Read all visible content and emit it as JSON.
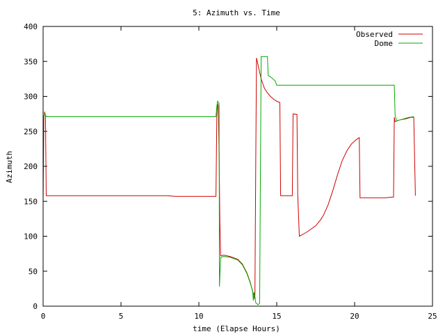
{
  "chart_data": {
    "type": "line",
    "title": "5: Azimuth vs. Time",
    "xlabel": "time (Elapse Hours)",
    "ylabel": "Azimuth",
    "xlim": [
      0,
      25
    ],
    "ylim": [
      0,
      400
    ],
    "xticks": [
      0,
      5,
      10,
      15,
      20,
      25
    ],
    "yticks": [
      0,
      50,
      100,
      150,
      200,
      250,
      300,
      350,
      400
    ],
    "grid": false,
    "legend_position": "top-right",
    "series": [
      {
        "name": "Observed",
        "color": "#cc0000",
        "points": [
          [
            0.0,
            150
          ],
          [
            0.05,
            270
          ],
          [
            0.1,
            278
          ],
          [
            0.15,
            272
          ],
          [
            0.2,
            158
          ],
          [
            0.25,
            158
          ],
          [
            5.0,
            158
          ],
          [
            8.0,
            158
          ],
          [
            8.5,
            157
          ],
          [
            11.0,
            157
          ],
          [
            11.1,
            157
          ],
          [
            11.15,
            270
          ],
          [
            11.2,
            290
          ],
          [
            11.25,
            285
          ],
          [
            11.3,
            220
          ],
          [
            11.35,
            120
          ],
          [
            11.4,
            72
          ],
          [
            11.6,
            73
          ],
          [
            12.0,
            71
          ],
          [
            12.5,
            67
          ],
          [
            12.8,
            60
          ],
          [
            13.1,
            47
          ],
          [
            13.3,
            34
          ],
          [
            13.5,
            17
          ],
          [
            13.6,
            10
          ],
          [
            13.65,
            200
          ],
          [
            13.7,
            355
          ],
          [
            13.8,
            345
          ],
          [
            14.0,
            325
          ],
          [
            14.2,
            312
          ],
          [
            14.4,
            305
          ],
          [
            14.6,
            300
          ],
          [
            14.8,
            296
          ],
          [
            15.0,
            293
          ],
          [
            15.2,
            291
          ],
          [
            15.25,
            158
          ],
          [
            15.5,
            158
          ],
          [
            16.0,
            158
          ],
          [
            16.05,
            275
          ],
          [
            16.3,
            274
          ],
          [
            16.35,
            160
          ],
          [
            16.45,
            100
          ],
          [
            16.7,
            103
          ],
          [
            17.0,
            107
          ],
          [
            17.5,
            115
          ],
          [
            17.8,
            123
          ],
          [
            18.0,
            130
          ],
          [
            18.3,
            145
          ],
          [
            18.6,
            165
          ],
          [
            18.9,
            188
          ],
          [
            19.2,
            208
          ],
          [
            19.5,
            222
          ],
          [
            19.8,
            232
          ],
          [
            20.1,
            238
          ],
          [
            20.3,
            241
          ],
          [
            20.35,
            155
          ],
          [
            20.6,
            155
          ],
          [
            21.5,
            155
          ],
          [
            22.0,
            155
          ],
          [
            22.4,
            156
          ],
          [
            22.5,
            156
          ],
          [
            22.55,
            270
          ],
          [
            22.6,
            264
          ],
          [
            23.0,
            267
          ],
          [
            23.3,
            268
          ],
          [
            23.6,
            270
          ],
          [
            23.8,
            270
          ],
          [
            23.9,
            158
          ]
        ]
      },
      {
        "name": "Dome",
        "color": "#00aa00",
        "points": [
          [
            0.0,
            268
          ],
          [
            0.1,
            276
          ],
          [
            0.2,
            271
          ],
          [
            1.0,
            271
          ],
          [
            5.0,
            271
          ],
          [
            10.0,
            271
          ],
          [
            11.0,
            271
          ],
          [
            11.1,
            271
          ],
          [
            11.15,
            285
          ],
          [
            11.2,
            293
          ],
          [
            11.3,
            290
          ],
          [
            11.32,
            28
          ],
          [
            11.4,
            70
          ],
          [
            11.6,
            71
          ],
          [
            12.0,
            70
          ],
          [
            12.5,
            66
          ],
          [
            12.8,
            59
          ],
          [
            13.1,
            46
          ],
          [
            13.3,
            33
          ],
          [
            13.45,
            22
          ],
          [
            13.5,
            8
          ],
          [
            13.55,
            20
          ],
          [
            13.65,
            5
          ],
          [
            13.8,
            2
          ],
          [
            13.9,
            4
          ],
          [
            14.0,
            357
          ],
          [
            14.4,
            357
          ],
          [
            14.45,
            330
          ],
          [
            14.6,
            328
          ],
          [
            14.9,
            322
          ],
          [
            15.0,
            316
          ],
          [
            16.0,
            316
          ],
          [
            20.0,
            316
          ],
          [
            22.0,
            316
          ],
          [
            22.55,
            316
          ],
          [
            22.6,
            273
          ],
          [
            22.7,
            265
          ],
          [
            23.0,
            267
          ],
          [
            23.5,
            270
          ],
          [
            23.8,
            271
          ]
        ]
      }
    ]
  }
}
